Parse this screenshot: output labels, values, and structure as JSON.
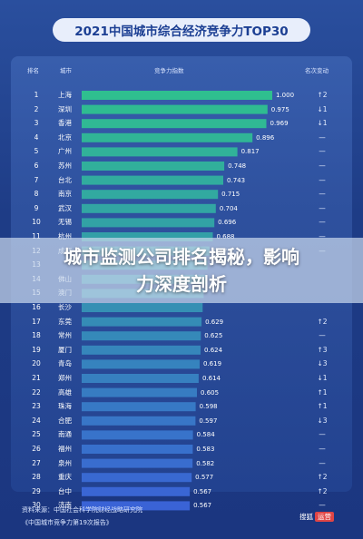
{
  "chart_data": {
    "type": "bar",
    "title": "2021中国城市综合经济竞争力TOP30",
    "columns": {
      "rank": "排名",
      "city": "城市",
      "score": "竞争力指数",
      "change": "名次变动"
    },
    "rows": [
      {
        "rank": "1",
        "city": "上海",
        "value": 1.0,
        "label": "1.000",
        "change": "↑2"
      },
      {
        "rank": "2",
        "city": "深圳",
        "value": 0.975,
        "label": "0.975",
        "change": "↓1"
      },
      {
        "rank": "3",
        "city": "香港",
        "value": 0.969,
        "label": "0.969",
        "change": "↓1"
      },
      {
        "rank": "4",
        "city": "北京",
        "value": 0.896,
        "label": "0.896",
        "change": "—"
      },
      {
        "rank": "5",
        "city": "广州",
        "value": 0.817,
        "label": "0.817",
        "change": "—"
      },
      {
        "rank": "6",
        "city": "苏州",
        "value": 0.748,
        "label": "0.748",
        "change": "—"
      },
      {
        "rank": "7",
        "city": "台北",
        "value": 0.743,
        "label": "0.743",
        "change": "—"
      },
      {
        "rank": "8",
        "city": "南京",
        "value": 0.715,
        "label": "0.715",
        "change": "—"
      },
      {
        "rank": "9",
        "city": "武汉",
        "value": 0.704,
        "label": "0.704",
        "change": "—"
      },
      {
        "rank": "10",
        "city": "无锡",
        "value": 0.696,
        "label": "0.696",
        "change": "—"
      },
      {
        "rank": "11",
        "city": "杭州",
        "value": 0.688,
        "label": "0.688",
        "change": "—"
      },
      {
        "rank": "12",
        "city": "成都",
        "value": 0.671,
        "label": "0.671",
        "change": "—"
      },
      {
        "rank": "13",
        "city": "",
        "value": 0.66,
        "label": "",
        "change": ""
      },
      {
        "rank": "14",
        "city": "佛山",
        "value": 0.65,
        "label": "",
        "change": ""
      },
      {
        "rank": "15",
        "city": "澳门",
        "value": 0.64,
        "label": "",
        "change": ""
      },
      {
        "rank": "16",
        "city": "长沙",
        "value": 0.635,
        "label": "",
        "change": ""
      },
      {
        "rank": "17",
        "city": "东莞",
        "value": 0.629,
        "label": "0.629",
        "change": "↑2"
      },
      {
        "rank": "18",
        "city": "常州",
        "value": 0.625,
        "label": "0.625",
        "change": "—"
      },
      {
        "rank": "19",
        "city": "厦门",
        "value": 0.624,
        "label": "0.624",
        "change": "↑3"
      },
      {
        "rank": "20",
        "city": "青岛",
        "value": 0.619,
        "label": "0.619",
        "change": "↓3"
      },
      {
        "rank": "21",
        "city": "郑州",
        "value": 0.614,
        "label": "0.614",
        "change": "↓1"
      },
      {
        "rank": "22",
        "city": "高雄",
        "value": 0.605,
        "label": "0.605",
        "change": "↑1"
      },
      {
        "rank": "23",
        "city": "珠海",
        "value": 0.598,
        "label": "0.598",
        "change": "↑1"
      },
      {
        "rank": "24",
        "city": "合肥",
        "value": 0.597,
        "label": "0.597",
        "change": "↓3"
      },
      {
        "rank": "25",
        "city": "南通",
        "value": 0.584,
        "label": "0.584",
        "change": "—"
      },
      {
        "rank": "26",
        "city": "福州",
        "value": 0.583,
        "label": "0.583",
        "change": "—"
      },
      {
        "rank": "27",
        "city": "泉州",
        "value": 0.582,
        "label": "0.582",
        "change": "—"
      },
      {
        "rank": "28",
        "city": "重庆",
        "value": 0.577,
        "label": "0.577",
        "change": "↑2"
      },
      {
        "rank": "29",
        "city": "台中",
        "value": 0.567,
        "label": "0.567",
        "change": "↑2"
      },
      {
        "rank": "30",
        "city": "济南",
        "value": 0.567,
        "label": "0.567",
        "change": "—"
      }
    ],
    "colors": {
      "top_bar": "#2fbf8f",
      "bottom_bar": "#3a63d6"
    },
    "xlim": [
      0,
      1.0
    ]
  },
  "banner": {
    "line1": "城市监测公司排名揭秘，影响",
    "line2": "力深度剖析"
  },
  "source": {
    "line1": "资料来源：中国社会科学院财经战略研究院",
    "line2": "《中国城市竞争力第19次报告》"
  },
  "logo": {
    "brand": "搜狐",
    "tag": "运营"
  }
}
